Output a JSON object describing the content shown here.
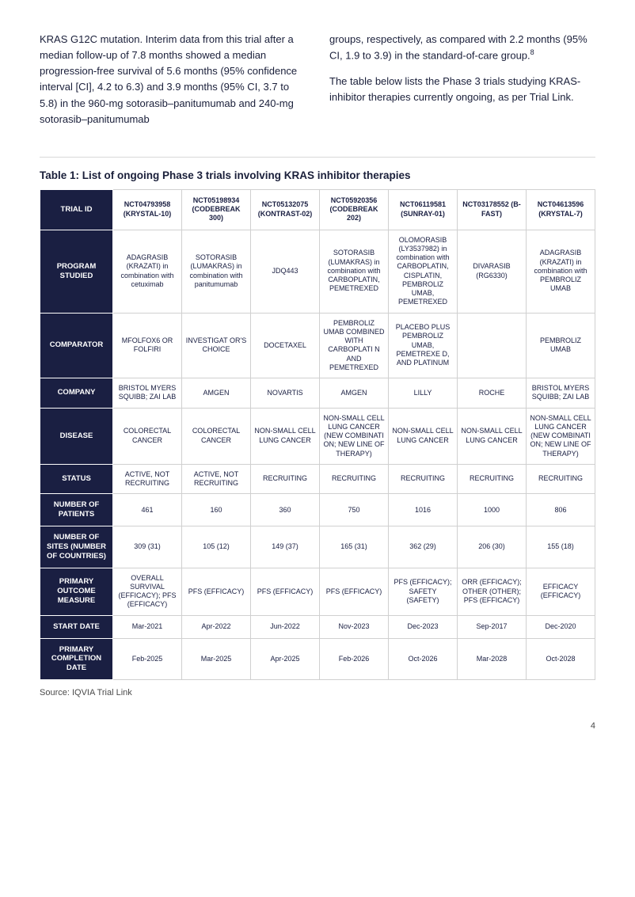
{
  "body_text": {
    "left_para": "KRAS G12C mutation. Interim data from this trial after a median follow-up of 7.8 months showed a median progression-free survival of 5.6 months (95% confidence interval [CI], 4.2 to 6.3) and 3.9 months (95% CI, 3.7 to 5.8) in the 960-mg sotorasib–panitumumab and 240-mg sotorasib–panitumumab",
    "right_para_1_pre": "groups, respectively, as compared with 2.2 months (95% CI, 1.9 to 3.9) in the standard-of-care group.",
    "right_para_1_sup": "8",
    "right_para_2": "The table below lists the Phase 3 trials studying KRAS-inhibitor therapies currently ongoing, as per Trial Link."
  },
  "table_title": "Table 1: List of ongoing Phase 3 trials involving KRAS inhibitor therapies",
  "table": {
    "row_labels": [
      "TRIAL ID",
      "PROGRAM STUDIED",
      "COMPARATOR",
      "COMPANY",
      "DISEASE",
      "STATUS",
      "NUMBER OF PATIENTS",
      "NUMBER OF SITES (NUMBER OF COUNTRIES)",
      "PRIMARY OUTCOME MEASURE",
      "START DATE",
      "PRIMARY COMPLETION DATE"
    ],
    "col_headers": [
      "NCT04793958 (KRYSTAL-10)",
      "NCT05198934 (CODEBREAK 300)",
      "NCT05132075 (KONTRAST-02)",
      "NCT05920356 (CODEBREAK 202)",
      "NCT06119581 (SUNRAY-01)",
      "NCT03178552 (B-FAST)",
      "NCT04613596 (KRYSTAL-7)"
    ],
    "rows": [
      [
        "ADAGRASIB (KRAZATI) in combination with cetuximab",
        "SOTORASIB (LUMAKRAS) in combination with panitumumab",
        "JDQ443",
        "SOTORASIB (LUMAKRAS) in combination with CARBOPLATIN, PEMETREXED",
        "OLOMORASIB (LY3537982) in combination with CARBOPLATIN, CISPLATIN, PEMBROLIZ UMAB, PEMETREXED",
        "DIVARASIB (RG6330)",
        "ADAGRASIB (KRAZATI) in combination with PEMBROLIZ UMAB"
      ],
      [
        "MFOLFOX6 OR FOLFIRI",
        "INVESTIGAT OR'S CHOICE",
        "DOCETAXEL",
        "PEMBROLIZ UMAB COMBINED WITH CARBOPLATI N AND PEMETREXED",
        "PLACEBO PLUS PEMBROLIZ UMAB, PEMETREXE D, AND PLATINUM",
        "",
        "PEMBROLIZ UMAB"
      ],
      [
        "BRISTOL MYERS SQUIBB; ZAI LAB",
        "AMGEN",
        "NOVARTIS",
        "AMGEN",
        "LILLY",
        "ROCHE",
        "BRISTOL MYERS SQUIBB; ZAI LAB"
      ],
      [
        "COLORECTAL CANCER",
        "COLORECTAL CANCER",
        "NON-SMALL CELL LUNG CANCER",
        "NON-SMALL CELL LUNG CANCER (NEW COMBINATI ON; NEW LINE OF THERAPY)",
        "NON-SMALL CELL LUNG CANCER",
        "NON-SMALL CELL LUNG CANCER",
        "NON-SMALL CELL LUNG CANCER (NEW COMBINATI ON; NEW LINE OF THERAPY)"
      ],
      [
        "ACTIVE, NOT RECRUITING",
        "ACTIVE, NOT RECRUITING",
        "RECRUITING",
        "RECRUITING",
        "RECRUITING",
        "RECRUITING",
        "RECRUITING"
      ],
      [
        "461",
        "160",
        "360",
        "750",
        "1016",
        "1000",
        "806"
      ],
      [
        "309 (31)",
        "105 (12)",
        "149 (37)",
        "165 (31)",
        "362 (29)",
        "206 (30)",
        "155 (18)"
      ],
      [
        "OVERALL SURVIVAL (EFFICACY); PFS (EFFICACY)",
        "PFS (EFFICACY)",
        "PFS (EFFICACY)",
        "PFS (EFFICACY)",
        "PFS (EFFICACY); SAFETY (SAFETY)",
        "ORR (EFFICACY); OTHER (OTHER); PFS (EFFICACY)",
        "EFFICACY (EFFICACY)"
      ],
      [
        "Mar-2021",
        "Apr-2022",
        "Jun-2022",
        "Nov-2023",
        "Dec-2023",
        "Sep-2017",
        "Dec-2020"
      ],
      [
        "Feb-2025",
        "Mar-2025",
        "Apr-2025",
        "Feb-2026",
        "Oct-2026",
        "Mar-2028",
        "Oct-2028"
      ]
    ]
  },
  "source": "Source: IQVIA Trial Link",
  "page_number": "4",
  "colors": {
    "header_bg": "#1a1f42",
    "header_fg": "#ffffff",
    "cell_border": "#d0d0d0",
    "text": "#1a1f3a"
  }
}
